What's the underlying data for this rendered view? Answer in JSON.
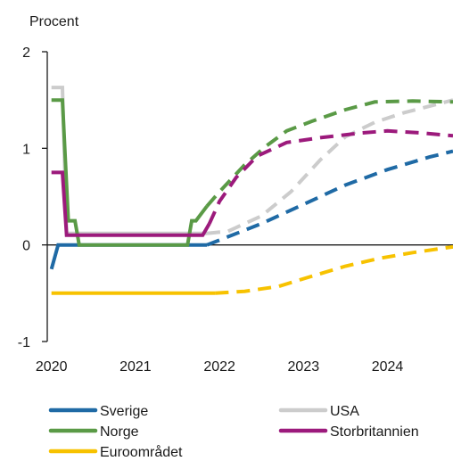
{
  "chart_data": {
    "type": "line",
    "ylabel": "Procent",
    "ylim": [
      -1,
      2
    ],
    "xlim": [
      2019.95,
      2024.78
    ],
    "yticks": [
      "2",
      "1",
      "0",
      "-1"
    ],
    "ytick_values": [
      2,
      1,
      0,
      -1
    ],
    "xticks": [
      "2020",
      "2021",
      "2022",
      "2023",
      "2024"
    ],
    "xtick_values": [
      2020,
      2021,
      2022,
      2023,
      2024
    ],
    "legend_placement": "bottom",
    "series": [
      {
        "name": "Sverige",
        "color": "#1f6aa5",
        "solid": [
          [
            2020.0,
            -0.25
          ],
          [
            2020.08,
            0.0
          ],
          [
            2021.85,
            0.0
          ]
        ],
        "dashed": [
          [
            2021.85,
            0.0
          ],
          [
            2022.0,
            0.05
          ],
          [
            2022.5,
            0.22
          ],
          [
            2023.0,
            0.42
          ],
          [
            2023.5,
            0.62
          ],
          [
            2024.0,
            0.78
          ],
          [
            2024.5,
            0.91
          ],
          [
            2024.78,
            0.97
          ]
        ]
      },
      {
        "name": "USA",
        "color": "#cccccc",
        "solid": [
          [
            2020.0,
            1.63
          ],
          [
            2020.13,
            1.63
          ],
          [
            2020.18,
            0.12
          ],
          [
            2021.85,
            0.12
          ]
        ],
        "dashed": [
          [
            2021.85,
            0.12
          ],
          [
            2022.1,
            0.14
          ],
          [
            2022.5,
            0.3
          ],
          [
            2022.85,
            0.55
          ],
          [
            2023.2,
            0.88
          ],
          [
            2023.5,
            1.12
          ],
          [
            2023.85,
            1.27
          ],
          [
            2024.2,
            1.37
          ],
          [
            2024.78,
            1.5
          ]
        ]
      },
      {
        "name": "Norge",
        "color": "#5a9a46",
        "solid": [
          [
            2020.0,
            1.5
          ],
          [
            2020.13,
            1.5
          ],
          [
            2020.2,
            0.25
          ],
          [
            2020.28,
            0.25
          ],
          [
            2020.33,
            0.0
          ],
          [
            2021.62,
            0.0
          ],
          [
            2021.67,
            0.25
          ],
          [
            2021.72,
            0.25
          ],
          [
            2021.85,
            0.4
          ]
        ],
        "dashed": [
          [
            2021.85,
            0.4
          ],
          [
            2022.0,
            0.55
          ],
          [
            2022.3,
            0.83
          ],
          [
            2022.55,
            1.02
          ],
          [
            2022.8,
            1.18
          ],
          [
            2023.1,
            1.28
          ],
          [
            2023.5,
            1.4
          ],
          [
            2023.85,
            1.48
          ],
          [
            2024.3,
            1.49
          ],
          [
            2024.78,
            1.48
          ]
        ]
      },
      {
        "name": "Storbritannien",
        "color": "#9c1a7c",
        "solid": [
          [
            2020.0,
            0.75
          ],
          [
            2020.13,
            0.75
          ],
          [
            2020.18,
            0.1
          ],
          [
            2021.8,
            0.1
          ],
          [
            2021.88,
            0.22
          ]
        ],
        "dashed": [
          [
            2021.88,
            0.22
          ],
          [
            2022.0,
            0.45
          ],
          [
            2022.2,
            0.7
          ],
          [
            2022.45,
            0.92
          ],
          [
            2022.8,
            1.06
          ],
          [
            2023.2,
            1.11
          ],
          [
            2023.7,
            1.16
          ],
          [
            2024.0,
            1.18
          ],
          [
            2024.4,
            1.16
          ],
          [
            2024.78,
            1.13
          ]
        ]
      },
      {
        "name": "Euroområdet",
        "color": "#f7c200",
        "solid": [
          [
            2020.0,
            -0.5
          ],
          [
            2021.95,
            -0.5
          ]
        ],
        "dashed": [
          [
            2021.95,
            -0.5
          ],
          [
            2022.3,
            -0.48
          ],
          [
            2022.7,
            -0.43
          ],
          [
            2023.0,
            -0.35
          ],
          [
            2023.5,
            -0.22
          ],
          [
            2023.9,
            -0.14
          ],
          [
            2024.3,
            -0.08
          ],
          [
            2024.78,
            -0.02
          ]
        ]
      }
    ]
  }
}
